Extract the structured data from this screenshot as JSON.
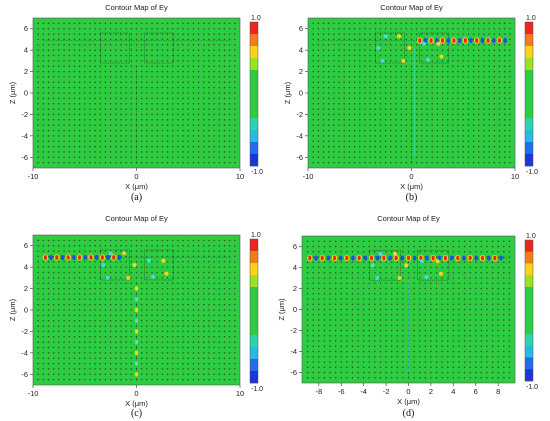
{
  "colors": {
    "field": "#2ecc40",
    "plot_bg": "#3fd14a",
    "dot": "#2a2a2a",
    "hot_red": "#e8281c",
    "hot_yellow": "#ffd21a",
    "cold_blue": "#1f4fe0",
    "cold_cyan": "#4fd7e8",
    "colorbar": [
      "#e8281c",
      "#f07c1e",
      "#ffd21a",
      "#9be12a",
      "#2ecc40",
      "#2ecc40",
      "#2ecc40",
      "#2ecc40",
      "#2bd3b0",
      "#2ab8e6",
      "#1f6ee8",
      "#1f35d6"
    ]
  },
  "panels": [
    {
      "id": "a",
      "title": "Contour Map of Ey",
      "caption": "(a)",
      "xlabel": "X (μm)",
      "ylabel": "Z (μm)",
      "x_ticks": [
        "-10",
        "0",
        "10"
      ],
      "y_ticks": [
        "6",
        "4",
        "2",
        "0",
        "-2",
        "-4",
        "-6"
      ],
      "colorbar_max": "1.0",
      "colorbar_min": "-1.0",
      "chart_data": {
        "type": "heatmap",
        "title": "Contour Map of Ey",
        "xlabel": "X (μm)",
        "ylabel": "Z (μm)",
        "xlim": [
          -10,
          10
        ],
        "ylim": [
          -7,
          7
        ],
        "color_range": [
          -1.0,
          1.0
        ],
        "field_highlights": []
      }
    },
    {
      "id": "b",
      "title": "Contour Map of Ey",
      "caption": "(b)",
      "xlabel": "X (μm)",
      "ylabel": "Z (μm)",
      "x_ticks": [
        "-10",
        "0",
        "10"
      ],
      "y_ticks": [
        "6",
        "4",
        "2",
        "0",
        "-2",
        "-4",
        "-6"
      ],
      "colorbar_max": "1.0",
      "colorbar_min": "-1.0",
      "chart_data": {
        "type": "heatmap",
        "title": "Contour Map of Ey",
        "xlabel": "X (μm)",
        "ylabel": "Z (μm)",
        "xlim": [
          -10,
          10
        ],
        "ylim": [
          -7,
          7
        ],
        "color_range": [
          -1.0,
          1.0
        ],
        "field_highlights": [
          "right waveguide row z≈5, x 0 to 9",
          "ring region near x≈-1 to 2, z≈3 to 5"
        ]
      }
    },
    {
      "id": "c",
      "title": "Contour Map of Ey",
      "caption": "(c)",
      "xlabel": "X (μm)",
      "ylabel": "Z (μm)",
      "x_ticks": [
        "-10",
        "0",
        "10"
      ],
      "y_ticks": [
        "6",
        "4",
        "2",
        "0",
        "-2",
        "-4",
        "-6"
      ],
      "colorbar_max": "1.0",
      "colorbar_min": "-1.0",
      "chart_data": {
        "type": "heatmap",
        "title": "Contour Map of Ey",
        "xlabel": "X (μm)",
        "ylabel": "Z (μm)",
        "xlim": [
          -10,
          10
        ],
        "ylim": [
          -7,
          7
        ],
        "color_range": [
          -1.0,
          1.0
        ],
        "field_highlights": [
          "left waveguide row z≈5, x -9 to -1",
          "ring region",
          "vertical channel x≈0, z -6 to 3"
        ]
      }
    },
    {
      "id": "d",
      "title": "Contour Map of Ey",
      "caption": "(d)",
      "xlabel": "X (μm)",
      "ylabel": "Z (μm)",
      "x_ticks": [
        "-8",
        "-6",
        "-4",
        "-2",
        "0",
        "2",
        "4",
        "6",
        "8"
      ],
      "y_ticks": [
        "6",
        "4",
        "2",
        "0",
        "-2",
        "-4",
        "-6"
      ],
      "colorbar_max": "1.0",
      "colorbar_min": "-1.0",
      "chart_data": {
        "type": "heatmap",
        "title": "Contour Map of Ey",
        "xlabel": "X (μm)",
        "ylabel": "Z (μm)",
        "xlim": [
          -9.5,
          9.5
        ],
        "ylim": [
          -7,
          7
        ],
        "color_range": [
          -1.0,
          1.0
        ],
        "field_highlights": [
          "full waveguide row z≈5, x -9 to 9",
          "ring region"
        ]
      }
    }
  ]
}
